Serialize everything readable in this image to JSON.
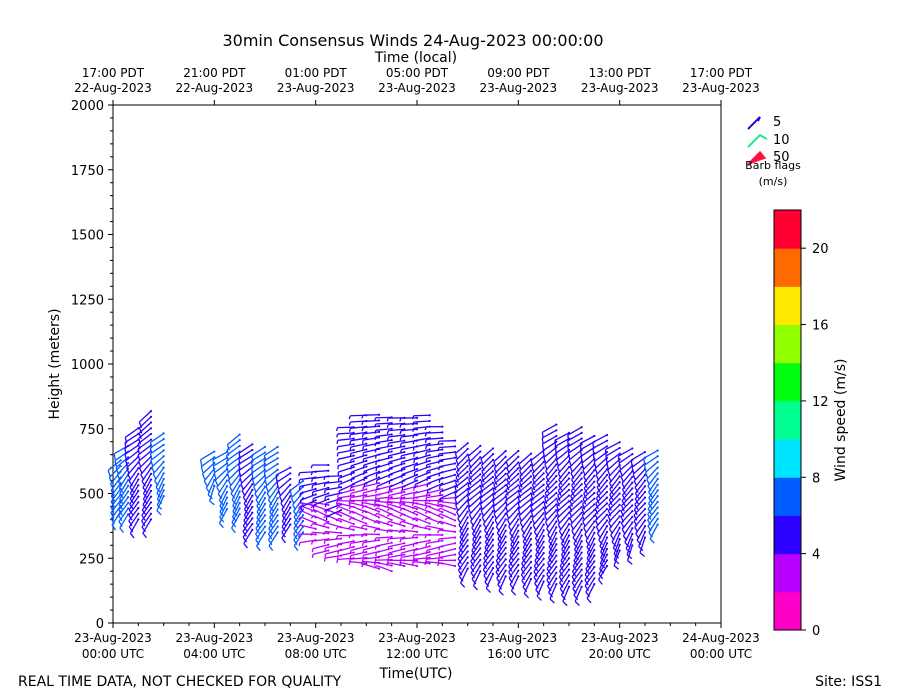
{
  "chart_data": {
    "type": "wind-barb",
    "title": "30min Consensus Winds 24-Aug-2023 00:00:00",
    "top_axis_label": "Time (local)",
    "xlabel": "Time(UTC)",
    "ylabel": "Height (meters)",
    "ylim": [
      0,
      2000
    ],
    "yticks": [
      0,
      250,
      500,
      750,
      1000,
      1250,
      1500,
      1750,
      2000
    ],
    "xlim_hours": [
      0,
      24
    ],
    "bottom_ticks": [
      {
        "hour": 0,
        "date": "23-Aug-2023",
        "time": "00:00 UTC"
      },
      {
        "hour": 4,
        "date": "23-Aug-2023",
        "time": "04:00 UTC"
      },
      {
        "hour": 8,
        "date": "23-Aug-2023",
        "time": "08:00 UTC"
      },
      {
        "hour": 12,
        "date": "23-Aug-2023",
        "time": "12:00 UTC"
      },
      {
        "hour": 16,
        "date": "23-Aug-2023",
        "time": "16:00 UTC"
      },
      {
        "hour": 20,
        "date": "23-Aug-2023",
        "time": "20:00 UTC"
      },
      {
        "hour": 24,
        "date": "24-Aug-2023",
        "time": "00:00 UTC"
      }
    ],
    "top_ticks": [
      {
        "hour": 0,
        "time": "17:00 PDT",
        "date": "22-Aug-2023"
      },
      {
        "hour": 4,
        "time": "21:00 PDT",
        "date": "22-Aug-2023"
      },
      {
        "hour": 8,
        "time": "01:00 PDT",
        "date": "23-Aug-2023"
      },
      {
        "hour": 12,
        "time": "05:00 PDT",
        "date": "23-Aug-2023"
      },
      {
        "hour": 16,
        "time": "09:00 PDT",
        "date": "23-Aug-2023"
      },
      {
        "hour": 20,
        "time": "13:00 PDT",
        "date": "23-Aug-2023"
      },
      {
        "hour": 24,
        "time": "17:00 PDT",
        "date": "23-Aug-2023"
      }
    ],
    "legend": {
      "title_line1": "Barb flags",
      "title_line2": "(m/s)",
      "entries": [
        {
          "label": "5",
          "color": "#1a0dd6"
        },
        {
          "label": "10",
          "color": "#20e890"
        },
        {
          "label": "50",
          "color": "#ff1040"
        }
      ]
    },
    "colorbar": {
      "label": "Wind speed (m/s)",
      "range": [
        0,
        22
      ],
      "ticks": [
        0,
        4,
        8,
        12,
        16,
        20
      ],
      "colors": [
        "#ff00c8",
        "#b800ff",
        "#2b00ff",
        "#005cff",
        "#00e5ff",
        "#00ff90",
        "#00ff10",
        "#90ff00",
        "#ffe800",
        "#ff6a00",
        "#ff0030"
      ]
    },
    "series": [
      {
        "hour": 0.3,
        "bottom": 430,
        "top": 640,
        "speed": 6.5
      },
      {
        "hour": 0.6,
        "bottom": 420,
        "top": 700,
        "speed": 6.5
      },
      {
        "hour": 1.0,
        "bottom": 400,
        "top": 770,
        "speed": 5.5
      },
      {
        "hour": 1.5,
        "bottom": 400,
        "top": 820,
        "speed": 5.0
      },
      {
        "hour": 2.0,
        "bottom": 490,
        "top": 750,
        "speed": 6.5
      },
      {
        "hour": 4.0,
        "bottom": 530,
        "top": 680,
        "speed": 6.8
      },
      {
        "hour": 4.5,
        "bottom": 440,
        "top": 670,
        "speed": 6.8
      },
      {
        "hour": 5.0,
        "bottom": 420,
        "top": 740,
        "speed": 6.5
      },
      {
        "hour": 5.5,
        "bottom": 360,
        "top": 700,
        "speed": 5.5
      },
      {
        "hour": 6.0,
        "bottom": 350,
        "top": 690,
        "speed": 6.5
      },
      {
        "hour": 6.5,
        "bottom": 350,
        "top": 680,
        "speed": 6.5
      },
      {
        "hour": 7.0,
        "bottom": 380,
        "top": 600,
        "speed": 5.5
      },
      {
        "hour": 7.5,
        "bottom": 350,
        "top": 560,
        "speed": 6.5
      },
      {
        "hour": 8.0,
        "bottom": 320,
        "top": 600,
        "speed": 3.5
      },
      {
        "hour": 8.5,
        "bottom": 280,
        "top": 610,
        "speed": 4.0
      },
      {
        "hour": 9.0,
        "bottom": 260,
        "top": 580,
        "speed": 3.5
      },
      {
        "hour": 9.5,
        "bottom": 250,
        "top": 770,
        "speed": 4.0
      },
      {
        "hour": 10.0,
        "bottom": 230,
        "top": 820,
        "speed": 4.0
      },
      {
        "hour": 10.5,
        "bottom": 210,
        "top": 820,
        "speed": 4.5
      },
      {
        "hour": 11.0,
        "bottom": 200,
        "top": 810,
        "speed": 4.5
      },
      {
        "hour": 11.5,
        "bottom": 220,
        "top": 800,
        "speed": 4.0
      },
      {
        "hour": 12.0,
        "bottom": 220,
        "top": 800,
        "speed": 4.5
      },
      {
        "hour": 12.5,
        "bottom": 230,
        "top": 820,
        "speed": 4.5
      },
      {
        "hour": 13.0,
        "bottom": 230,
        "top": 760,
        "speed": 4.5
      },
      {
        "hour": 13.5,
        "bottom": 220,
        "top": 720,
        "speed": 4.5
      },
      {
        "hour": 14.0,
        "bottom": 210,
        "top": 700,
        "speed": 5.0
      },
      {
        "hour": 14.5,
        "bottom": 200,
        "top": 690,
        "speed": 5.0
      },
      {
        "hour": 15.0,
        "bottom": 190,
        "top": 680,
        "speed": 5.0
      },
      {
        "hour": 15.5,
        "bottom": 180,
        "top": 680,
        "speed": 5.0
      },
      {
        "hour": 16.0,
        "bottom": 180,
        "top": 670,
        "speed": 5.0
      },
      {
        "hour": 16.5,
        "bottom": 170,
        "top": 660,
        "speed": 5.0
      },
      {
        "hour": 17.0,
        "bottom": 160,
        "top": 670,
        "speed": 5.0
      },
      {
        "hour": 17.5,
        "bottom": 150,
        "top": 770,
        "speed": 5.0
      },
      {
        "hour": 18.0,
        "bottom": 140,
        "top": 750,
        "speed": 5.0
      },
      {
        "hour": 18.5,
        "bottom": 140,
        "top": 770,
        "speed": 5.0
      },
      {
        "hour": 19.0,
        "bottom": 150,
        "top": 740,
        "speed": 5.0
      },
      {
        "hour": 19.5,
        "bottom": 220,
        "top": 730,
        "speed": 5.0
      },
      {
        "hour": 20.0,
        "bottom": 280,
        "top": 700,
        "speed": 5.0
      },
      {
        "hour": 20.5,
        "bottom": 300,
        "top": 680,
        "speed": 5.0
      },
      {
        "hour": 21.0,
        "bottom": 330,
        "top": 670,
        "speed": 5.5
      },
      {
        "hour": 21.5,
        "bottom": 380,
        "top": 680,
        "speed": 6.5
      }
    ]
  },
  "footer": {
    "note": "REAL TIME DATA, NOT CHECKED FOR QUALITY",
    "site": "Site: ISS1"
  }
}
